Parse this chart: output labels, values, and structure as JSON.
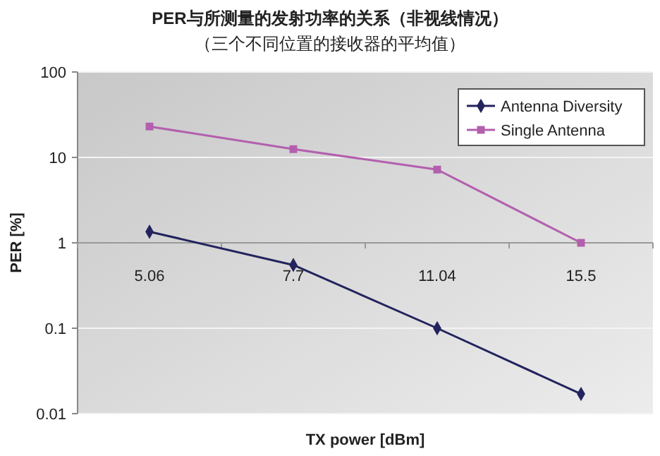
{
  "chart_data": {
    "type": "line",
    "title": "PER与所测量的发射功率的关系（非视线情况）",
    "subtitle": "（三个不同位置的接收器的平均值）",
    "xlabel": "TX power [dBm]",
    "ylabel": "PER [%]",
    "categories": [
      "5.06",
      "7.7",
      "11.04",
      "15.5"
    ],
    "series": [
      {
        "name": "Antenna Diversity",
        "color": "#23235e",
        "marker": "diamond",
        "values": [
          1.35,
          0.55,
          0.1,
          0.017
        ]
      },
      {
        "name": "Single Antenna",
        "color": "#b35fae",
        "marker": "square",
        "values": [
          23,
          12.5,
          7.2,
          1.0
        ]
      }
    ],
    "log": true,
    "ylim": [
      0.01,
      100
    ],
    "yticks": [
      0.01,
      0.1,
      1,
      10,
      100
    ],
    "grid": "y",
    "legend": "top right"
  }
}
